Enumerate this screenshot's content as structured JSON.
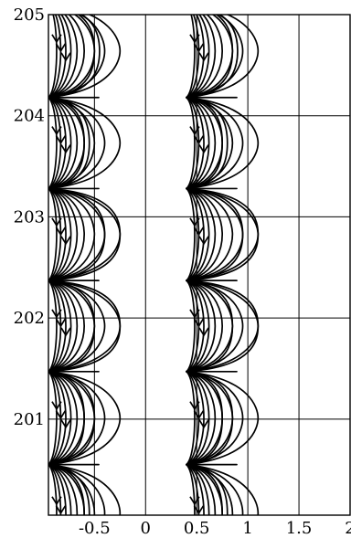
{
  "chart_data": {
    "type": "line",
    "title": "",
    "xlabel": "",
    "ylabel": "",
    "xlim": [
      -0.95,
      2.0
    ],
    "ylim": [
      200.05,
      205.0
    ],
    "grid": true,
    "x_ticks": [
      -0.5,
      0,
      0.5,
      1,
      1.5,
      2
    ],
    "x_tick_labels": [
      "-0.5",
      "0",
      "0.5",
      "1",
      "1.5",
      "2"
    ],
    "y_ticks": [
      201,
      202,
      203,
      204,
      205
    ],
    "y_tick_labels": [
      "201",
      "202",
      "203",
      "204",
      "205"
    ],
    "description_free_note": "",
    "separatrix_y": [
      200.55,
      201.47,
      202.37,
      203.28,
      204.18
    ],
    "cusp_x": [
      -0.95,
      0.4
    ],
    "arc_reach_dx": [
      0.08,
      0.12,
      0.17,
      0.22,
      0.28,
      0.35,
      0.45,
      0.55,
      0.7
    ],
    "cell_pattern": [
      [
        0.4,
        0.35,
        0.4,
        0.9
      ],
      [
        0.45,
        0.35,
        0.6,
        0.4
      ],
      [
        0.7,
        0.45,
        0.85,
        0.35
      ],
      [
        0.55,
        0.7,
        0.75,
        0.6
      ],
      [
        0.35,
        0.4,
        0.5,
        0.35
      ],
      [
        0.45,
        0.5,
        0.4,
        0.45
      ]
    ]
  }
}
